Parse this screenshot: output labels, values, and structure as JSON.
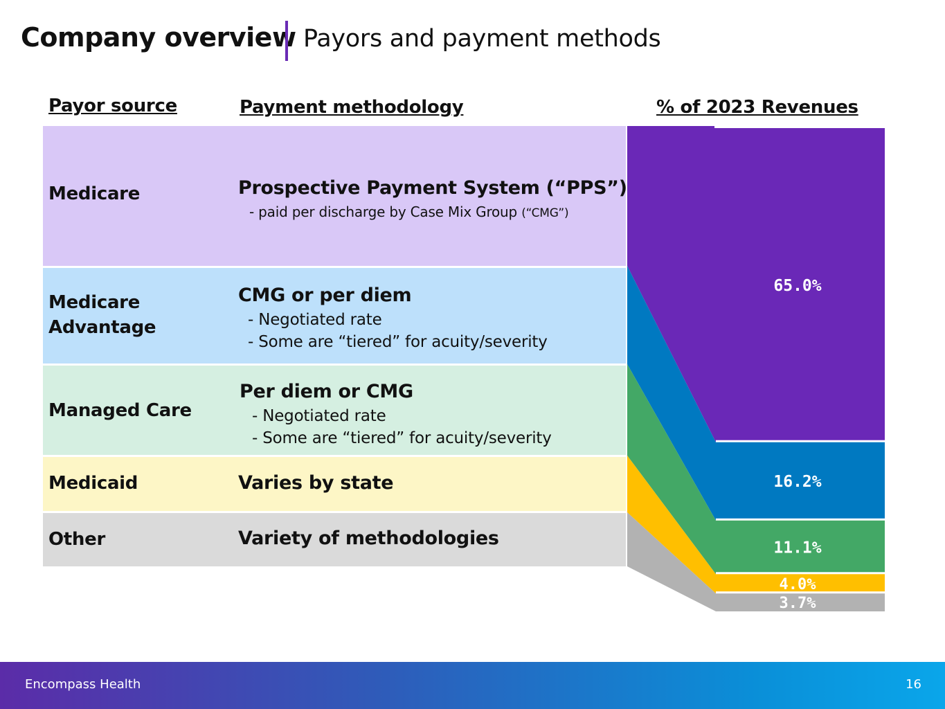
{
  "header": {
    "title": "Company overview",
    "subtitle": "Payors and payment methods"
  },
  "columns": {
    "payor_source": "Payor source",
    "payment_methodology": "Payment methodology",
    "revenues": "% of 2023 Revenues"
  },
  "rows": [
    {
      "source": "Medicare",
      "method": "Prospective Payment System (“PPS”)",
      "details": [
        "- paid per discharge by Case Mix Group",
        "(“CMG”)"
      ],
      "bg": "#d9c8f7"
    },
    {
      "source": "Medicare Advantage",
      "method": "CMG or per diem",
      "details": [
        "- Negotiated rate",
        "- Some are “tiered” for acuity/severity"
      ],
      "bg": "#bde0fb"
    },
    {
      "source": "Managed Care",
      "method": "Per diem or CMG",
      "details": [
        "- Negotiated rate",
        "- Some are “tiered” for acuity/severity"
      ],
      "bg": "#d5efe1"
    },
    {
      "source": "Medicaid",
      "method": "Varies by state",
      "details": [],
      "bg": "#fdf6c6"
    },
    {
      "source": "Other",
      "method": "Variety of methodologies",
      "details": [],
      "bg": "#dadada"
    }
  ],
  "chart_data": {
    "type": "bar",
    "title": "% of 2023 Revenues",
    "categories": [
      "Medicare",
      "Medicare Advantage",
      "Managed Care",
      "Medicaid",
      "Other"
    ],
    "values": [
      65.0,
      16.2,
      11.1,
      4.0,
      3.7
    ],
    "labels": [
      "65.0%",
      "16.2%",
      "11.1%",
      "4.0%",
      "3.7%"
    ],
    "colors": [
      "#6a28b7",
      "#0079c1",
      "#43a866",
      "#ffbf00",
      "#b2b2b2"
    ],
    "label_colors": [
      "#ffffff",
      "#ffffff",
      "#ffffff",
      "#ffffff",
      "#ffffff"
    ]
  },
  "footer": {
    "company": "Encompass Health",
    "page_number": "16"
  }
}
